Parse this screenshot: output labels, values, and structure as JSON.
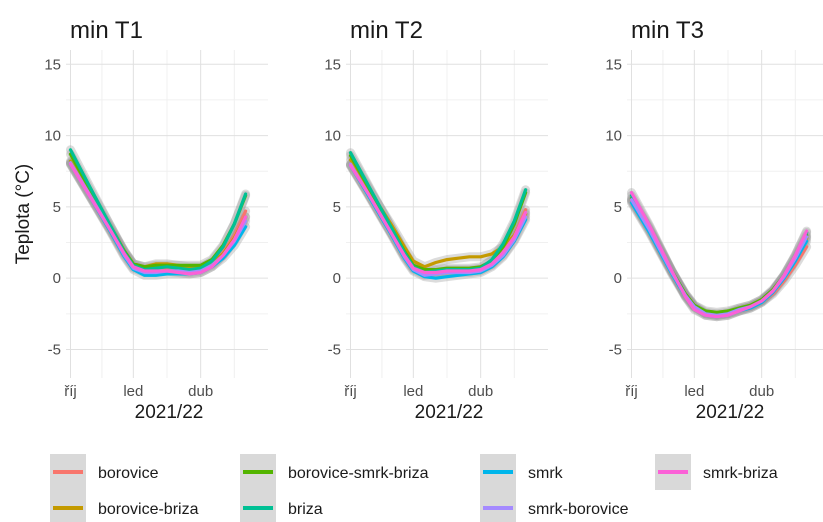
{
  "chart_data": {
    "type": "line",
    "ylabel": "Teplota (°C)",
    "xlabel": "2021/22",
    "ylim": [
      -7,
      16
    ],
    "yticks": [
      -5,
      0,
      5,
      10,
      15
    ],
    "xlim": [
      0,
      9
    ],
    "xticks": [
      {
        "x": 0.2,
        "label": "říj"
      },
      {
        "x": 3.0,
        "label": "led"
      },
      {
        "x": 6.0,
        "label": "dub"
      }
    ],
    "grid": true,
    "legend_position": "bottom",
    "series_styles": [
      {
        "name": "borovice",
        "color": "#F8766D"
      },
      {
        "name": "borovice-briza",
        "color": "#C49A00"
      },
      {
        "name": "borovice-smrk-briza",
        "color": "#53B400"
      },
      {
        "name": "briza",
        "color": "#00C094"
      },
      {
        "name": "smrk",
        "color": "#00B6EB"
      },
      {
        "name": "smrk-borovice",
        "color": "#A58AFF"
      },
      {
        "name": "smrk-briza",
        "color": "#FB61D7"
      }
    ],
    "panels": [
      {
        "title": "min T1",
        "x": [
          0.2,
          1.0,
          2.0,
          2.6,
          3.0,
          3.5,
          4.0,
          4.5,
          5.0,
          5.5,
          6.0,
          6.5,
          7.0,
          7.5,
          8.0
        ],
        "series": [
          {
            "name": "borovice",
            "values": [
              8.1,
              6.0,
              3.4,
              1.8,
              1.0,
              0.7,
              0.8,
              0.7,
              0.6,
              0.5,
              0.6,
              1.0,
              1.8,
              3.0,
              4.7
            ]
          },
          {
            "name": "borovice-briza",
            "values": [
              8.2,
              6.1,
              3.5,
              1.9,
              1.0,
              0.8,
              1.0,
              1.0,
              0.9,
              0.8,
              0.8,
              1.1,
              1.7,
              2.8,
              4.3
            ]
          },
          {
            "name": "borovice-smrk-briza",
            "values": [
              8.7,
              6.4,
              3.6,
              1.9,
              1.0,
              0.8,
              0.9,
              0.9,
              0.9,
              0.9,
              0.9,
              1.3,
              2.3,
              3.8,
              5.8
            ]
          },
          {
            "name": "briza",
            "values": [
              9.0,
              6.6,
              3.6,
              1.8,
              0.9,
              0.6,
              0.7,
              0.8,
              0.7,
              0.6,
              0.7,
              1.2,
              2.2,
              3.8,
              5.9
            ]
          },
          {
            "name": "smrk",
            "values": [
              8.0,
              5.9,
              3.2,
              1.5,
              0.6,
              0.2,
              0.2,
              0.3,
              0.3,
              0.3,
              0.4,
              0.8,
              1.4,
              2.3,
              3.6
            ]
          },
          {
            "name": "smrk-borovice",
            "values": [
              8.1,
              6.0,
              3.3,
              1.6,
              0.7,
              0.4,
              0.4,
              0.5,
              0.5,
              0.4,
              0.5,
              0.9,
              1.6,
              2.6,
              4.0
            ]
          },
          {
            "name": "smrk-briza",
            "values": [
              8.0,
              5.9,
              3.3,
              1.7,
              0.8,
              0.5,
              0.5,
              0.5,
              0.4,
              0.3,
              0.4,
              0.8,
              1.6,
              2.7,
              4.3
            ]
          }
        ]
      },
      {
        "title": "min T2",
        "x": [
          0.2,
          1.0,
          2.0,
          2.6,
          3.0,
          3.5,
          4.0,
          4.5,
          5.0,
          5.5,
          6.0,
          6.5,
          7.0,
          7.5,
          8.0
        ],
        "series": [
          {
            "name": "borovice",
            "values": [
              8.0,
              5.9,
              3.2,
              1.6,
              0.7,
              0.3,
              0.3,
              0.4,
              0.5,
              0.5,
              0.6,
              1.0,
              1.8,
              3.0,
              4.8
            ]
          },
          {
            "name": "borovice-briza",
            "values": [
              8.3,
              6.3,
              3.8,
              2.2,
              1.2,
              0.8,
              1.1,
              1.3,
              1.4,
              1.5,
              1.5,
              1.7,
              2.2,
              3.0,
              4.5
            ]
          },
          {
            "name": "borovice-smrk-briza",
            "values": [
              8.6,
              6.4,
              3.6,
              1.9,
              0.9,
              0.6,
              0.6,
              0.7,
              0.7,
              0.7,
              0.8,
              1.2,
              2.2,
              3.8,
              6.0
            ]
          },
          {
            "name": "briza",
            "values": [
              8.8,
              6.5,
              3.6,
              1.8,
              0.8,
              0.4,
              0.5,
              0.6,
              0.6,
              0.6,
              0.7,
              1.3,
              2.4,
              4.0,
              6.2
            ]
          },
          {
            "name": "smrk",
            "values": [
              7.9,
              5.8,
              3.1,
              1.4,
              0.5,
              0.1,
              0.0,
              0.1,
              0.2,
              0.3,
              0.4,
              0.8,
              1.5,
              2.6,
              4.1
            ]
          },
          {
            "name": "smrk-borovice",
            "values": [
              8.0,
              5.9,
              3.2,
              1.5,
              0.6,
              0.2,
              0.3,
              0.4,
              0.4,
              0.4,
              0.5,
              0.9,
              1.6,
              2.7,
              4.3
            ]
          },
          {
            "name": "smrk-briza",
            "values": [
              7.9,
              5.9,
              3.2,
              1.6,
              0.7,
              0.4,
              0.4,
              0.5,
              0.5,
              0.5,
              0.6,
              1.0,
              1.8,
              2.9,
              4.6
            ]
          }
        ]
      },
      {
        "title": "min T3",
        "x": [
          0.2,
          1.0,
          2.0,
          2.6,
          3.0,
          3.5,
          4.0,
          4.5,
          5.0,
          5.5,
          6.0,
          6.5,
          7.0,
          7.5,
          8.0
        ],
        "series": [
          {
            "name": "borovice",
            "values": [
              5.4,
              3.3,
              0.4,
              -1.2,
              -2.0,
              -2.5,
              -2.6,
              -2.5,
              -2.3,
              -2.1,
              -1.7,
              -1.1,
              -0.2,
              0.9,
              2.2
            ]
          },
          {
            "name": "borovice-briza",
            "values": [
              5.5,
              3.4,
              0.5,
              -1.1,
              -1.9,
              -2.4,
              -2.5,
              -2.4,
              -2.1,
              -1.9,
              -1.5,
              -0.9,
              0.1,
              1.3,
              2.8
            ]
          },
          {
            "name": "borovice-smrk-briza",
            "values": [
              5.6,
              3.5,
              0.5,
              -1.1,
              -1.9,
              -2.3,
              -2.4,
              -2.3,
              -2.1,
              -1.9,
              -1.5,
              -0.8,
              0.2,
              1.5,
              3.0
            ]
          },
          {
            "name": "briza",
            "values": [
              5.8,
              3.6,
              0.5,
              -1.2,
              -2.0,
              -2.5,
              -2.6,
              -2.5,
              -2.2,
              -2.0,
              -1.6,
              -0.9,
              0.2,
              1.6,
              3.2
            ]
          },
          {
            "name": "smrk",
            "values": [
              5.3,
              3.2,
              0.3,
              -1.3,
              -2.1,
              -2.6,
              -2.7,
              -2.6,
              -2.3,
              -2.1,
              -1.7,
              -1.0,
              0.0,
              1.2,
              2.6
            ]
          },
          {
            "name": "smrk-borovice",
            "values": [
              5.5,
              3.4,
              0.4,
              -1.2,
              -2.0,
              -2.5,
              -2.6,
              -2.5,
              -2.2,
              -2.0,
              -1.6,
              -0.9,
              0.1,
              1.4,
              2.9
            ]
          },
          {
            "name": "smrk-briza",
            "values": [
              6.0,
              3.7,
              0.5,
              -1.3,
              -2.2,
              -2.6,
              -2.7,
              -2.6,
              -2.3,
              -2.0,
              -1.6,
              -0.9,
              0.2,
              1.6,
              3.3
            ]
          }
        ]
      }
    ]
  }
}
